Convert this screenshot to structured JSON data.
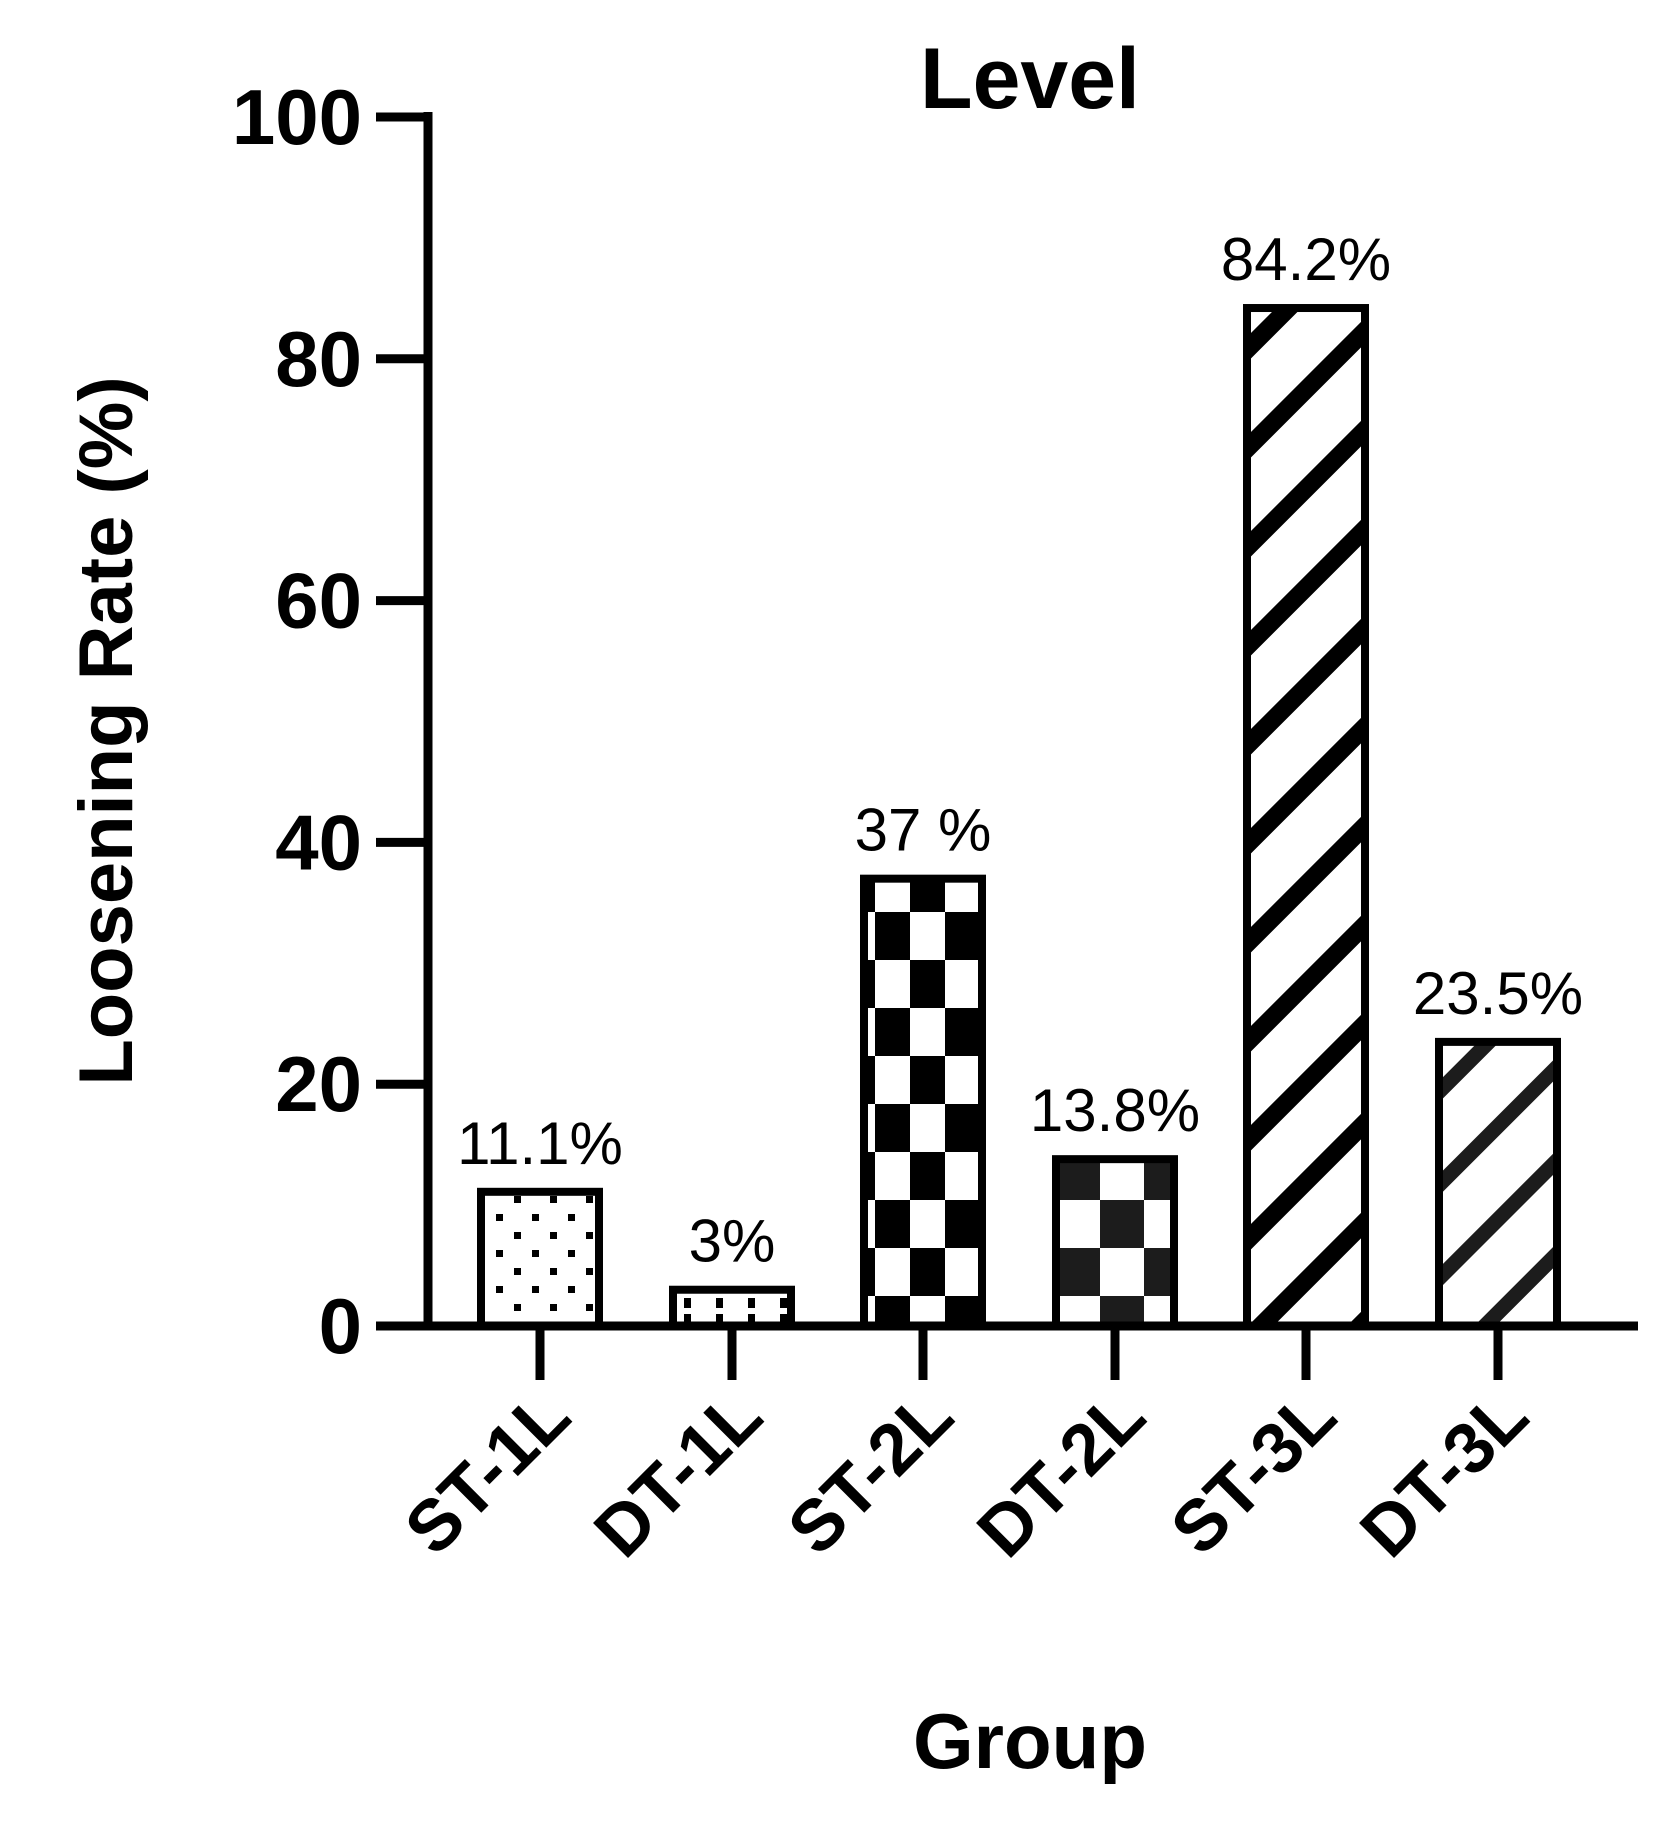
{
  "chart_data": {
    "type": "bar",
    "title": "Level",
    "xlabel": "Group",
    "ylabel": "Loosening Rate (%)",
    "ylim": [
      0,
      100
    ],
    "yticks": [
      "0",
      "20",
      "40",
      "60",
      "80",
      "100"
    ],
    "categories": [
      "ST-1L",
      "DT-1L",
      "ST-2L",
      "DT-2L",
      "ST-3L",
      "DT-3L"
    ],
    "values": [
      11.1,
      3,
      37,
      13.8,
      84.2,
      23.5
    ],
    "data_labels": [
      "11.1%",
      "3%",
      "37 %",
      "13.8%",
      "84.2%",
      "23.5%"
    ],
    "patterns": [
      "dots",
      "dashes",
      "checker",
      "checker-dark",
      "diagonal-stripes",
      "diagonal-stripes-thin"
    ],
    "colors": {
      "ink": "#000000",
      "background": "#ffffff",
      "checker_dark": "#1c1c1c"
    },
    "grid": false,
    "legend": "none"
  }
}
